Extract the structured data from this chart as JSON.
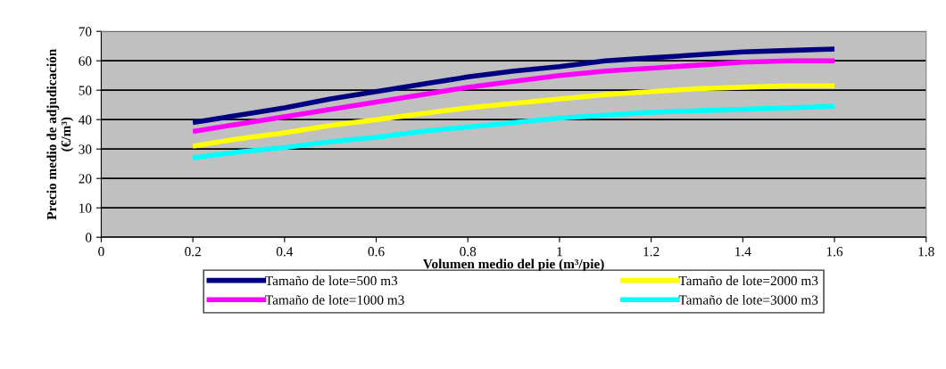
{
  "chart_data": {
    "type": "line",
    "xlabel": "Volumen medio del pie (m³/pie)",
    "ylabel": "Precio medio de adjudicación\n(€/m³)",
    "x": [
      0.2,
      0.3,
      0.4,
      0.5,
      0.6,
      0.7,
      0.8,
      0.9,
      1.0,
      1.1,
      1.2,
      1.3,
      1.4,
      1.5,
      1.6
    ],
    "series": [
      {
        "name": "Tamaño de lote=500 m3",
        "color": "#000080",
        "values": [
          39,
          41.5,
          44,
          47,
          49.5,
          52,
          54.5,
          56.5,
          58,
          60,
          61,
          62,
          63,
          63.5,
          64
        ]
      },
      {
        "name": "Tamaño de lote=1000 m3",
        "color": "#ff00ff",
        "values": [
          36,
          38.5,
          41,
          43.5,
          46,
          48.5,
          51,
          53,
          55,
          56.5,
          57.5,
          58.5,
          59.5,
          60,
          60
        ]
      },
      {
        "name": "Tamaño de lote=2000 m3",
        "color": "#ffff00",
        "values": [
          31,
          33.5,
          35.5,
          38,
          40,
          42,
          44,
          45.5,
          47,
          48.5,
          49.5,
          50.5,
          51,
          51.5,
          51.5
        ]
      },
      {
        "name": "Tamaño de lote=3000 m3",
        "color": "#00ffff",
        "values": [
          27,
          29,
          30.5,
          32.5,
          34,
          36,
          37.5,
          39,
          40.5,
          41.5,
          42.5,
          43,
          43.5,
          44,
          44.5
        ]
      }
    ],
    "xlim": [
      0,
      1.8
    ],
    "xticks": [
      0,
      0.2,
      0.4,
      0.6,
      0.8,
      1,
      1.2,
      1.4,
      1.6,
      1.8
    ],
    "ylim": [
      0,
      70
    ],
    "yticks": [
      0,
      10,
      20,
      30,
      40,
      50,
      60,
      70
    ],
    "grid": "y",
    "legend": "bottom",
    "marker": "none",
    "line_style": "solid"
  }
}
